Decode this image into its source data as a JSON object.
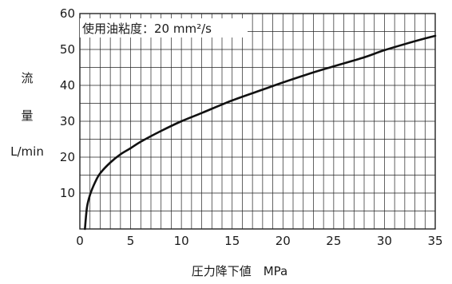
{
  "chart_data": {
    "type": "line",
    "title": "",
    "annotation": "使用油粘度：20 mm²/s",
    "xlabel": "圧力降下値　MPa",
    "ylabel_chars": [
      "流",
      "量"
    ],
    "ylabel_unit": "L/min",
    "xlim": [
      0,
      35
    ],
    "ylim": [
      0,
      60
    ],
    "xticks": [
      0,
      5,
      10,
      15,
      20,
      25,
      30,
      35
    ],
    "yticks": [
      10,
      20,
      30,
      40,
      50,
      60
    ],
    "grid": true,
    "legend": "none",
    "series": [
      {
        "x": [
          0.5,
          0.7,
          1,
          1.5,
          2,
          3,
          4,
          5,
          6,
          8,
          10,
          12,
          15,
          18,
          20,
          23,
          25,
          28,
          30,
          33,
          35
        ],
        "y": [
          0,
          6,
          9.5,
          13,
          15.5,
          18.5,
          20.8,
          22.5,
          24.3,
          27.3,
          30,
          32.3,
          35.8,
          38.8,
          40.8,
          43.6,
          45.3,
          47.8,
          49.8,
          52.3,
          53.8
        ]
      }
    ]
  },
  "colors": {
    "line": "#111111",
    "grid": "#222222",
    "background": "#ffffff"
  }
}
